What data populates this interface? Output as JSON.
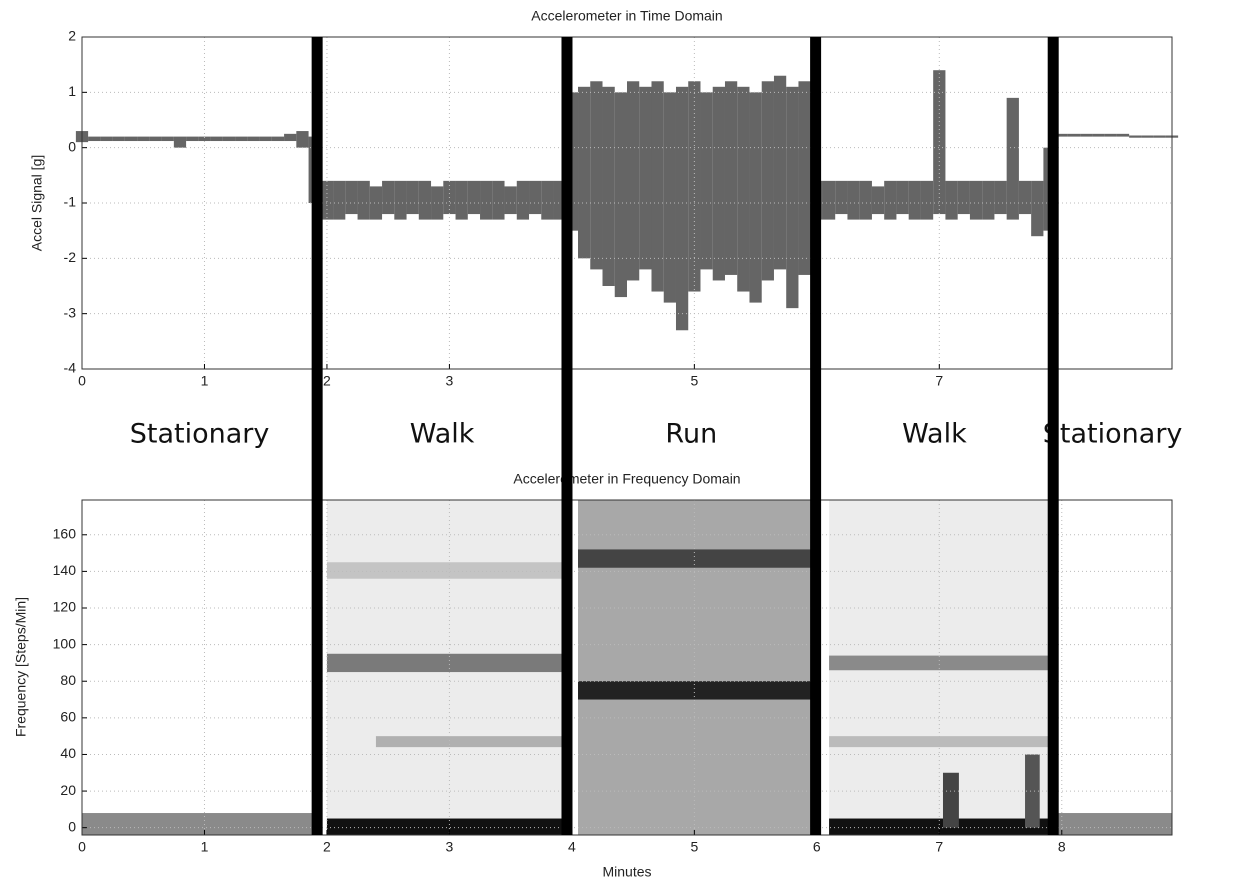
{
  "chart_data": [
    {
      "type": "envelope",
      "title": "Accelerometer in Time Domain",
      "y_label": "Accel Signal [g]",
      "xlim": [
        0,
        8.9
      ],
      "xticks": [
        0,
        1,
        2,
        3,
        5,
        7
      ],
      "ylim": [
        -4,
        2
      ],
      "yticks": [
        -4,
        -3,
        -2,
        -1,
        0,
        1,
        2
      ],
      "grid": true,
      "color": "#4a4a4a",
      "x": [
        0,
        0.1,
        0.2,
        0.3,
        0.4,
        0.5,
        0.6,
        0.7,
        0.8,
        0.9,
        1,
        1.1,
        1.2,
        1.3,
        1.4,
        1.5,
        1.6,
        1.7,
        1.8,
        1.9,
        2,
        2.1,
        2.2,
        2.3,
        2.4,
        2.5,
        2.6,
        2.7,
        2.8,
        2.9,
        3,
        3.1,
        3.2,
        3.3,
        3.4,
        3.5,
        3.6,
        3.7,
        3.8,
        3.9,
        4,
        4.1,
        4.2,
        4.3,
        4.4,
        4.5,
        4.6,
        4.7,
        4.8,
        4.9,
        5,
        5.1,
        5.2,
        5.3,
        5.4,
        5.5,
        5.6,
        5.7,
        5.8,
        5.9,
        6,
        6.1,
        6.2,
        6.3,
        6.4,
        6.5,
        6.6,
        6.7,
        6.8,
        6.9,
        7,
        7.1,
        7.2,
        7.3,
        7.4,
        7.5,
        7.6,
        7.7,
        7.8,
        7.9,
        8,
        8.1,
        8.2,
        8.3,
        8.4,
        8.5,
        8.6,
        8.7,
        8.8,
        8.9
      ],
      "high": [
        0.3,
        0.2,
        0.2,
        0.2,
        0.2,
        0.2,
        0.2,
        0.2,
        0.2,
        0.2,
        0.2,
        0.2,
        0.2,
        0.2,
        0.2,
        0.2,
        0.2,
        0.25,
        0.3,
        0.2,
        -0.6,
        -0.6,
        -0.6,
        -0.6,
        -0.7,
        -0.6,
        -0.6,
        -0.6,
        -0.6,
        -0.7,
        -0.6,
        -0.6,
        -0.6,
        -0.6,
        -0.6,
        -0.7,
        -0.6,
        -0.6,
        -0.6,
        -0.6,
        1.0,
        1.1,
        1.2,
        1.1,
        1.0,
        1.2,
        1.1,
        1.2,
        1.0,
        1.1,
        1.2,
        1.0,
        1.1,
        1.2,
        1.1,
        1.0,
        1.2,
        1.3,
        1.1,
        1.2,
        -0.6,
        -0.6,
        -0.6,
        -0.6,
        -0.6,
        -0.7,
        -0.6,
        -0.6,
        -0.6,
        -0.6,
        1.4,
        -0.6,
        -0.6,
        -0.6,
        -0.6,
        -0.6,
        0.9,
        -0.6,
        -0.6,
        0.0,
        0.25,
        0.25,
        0.25,
        0.25,
        0.25,
        0.25,
        0.22,
        0.22,
        0.22,
        0.22
      ],
      "low": [
        0.1,
        0.12,
        0.12,
        0.12,
        0.12,
        0.12,
        0.12,
        0.12,
        0.0,
        0.12,
        0.12,
        0.12,
        0.12,
        0.12,
        0.12,
        0.12,
        0.12,
        0.12,
        0.0,
        -1.0,
        -1.3,
        -1.3,
        -1.2,
        -1.3,
        -1.3,
        -1.2,
        -1.3,
        -1.2,
        -1.3,
        -1.3,
        -1.2,
        -1.3,
        -1.2,
        -1.3,
        -1.3,
        -1.2,
        -1.3,
        -1.2,
        -1.3,
        -1.3,
        -1.5,
        -2.0,
        -2.2,
        -2.5,
        -2.7,
        -2.4,
        -2.2,
        -2.6,
        -2.8,
        -3.3,
        -2.6,
        -2.2,
        -2.4,
        -2.3,
        -2.6,
        -2.8,
        -2.4,
        -2.2,
        -2.9,
        -2.3,
        -1.3,
        -1.3,
        -1.2,
        -1.3,
        -1.3,
        -1.2,
        -1.3,
        -1.2,
        -1.3,
        -1.3,
        -1.2,
        -1.3,
        -1.2,
        -1.3,
        -1.3,
        -1.2,
        -1.3,
        -1.2,
        -1.6,
        -1.5,
        0.2,
        0.2,
        0.2,
        0.2,
        0.2,
        0.2,
        0.18,
        0.18,
        0.18,
        0.18
      ],
      "segments": [
        {
          "label": "Stationary",
          "start": 0,
          "end": 1.92
        },
        {
          "label": "Walk",
          "start": 1.92,
          "end": 3.96
        },
        {
          "label": "Run",
          "start": 3.96,
          "end": 5.99
        },
        {
          "label": "Walk",
          "start": 5.99,
          "end": 7.93
        },
        {
          "label": "Stationary",
          "start": 7.93,
          "end": 8.9
        }
      ]
    },
    {
      "type": "spectrogram",
      "title": "Accelerometer in Frequency Domain",
      "y_label": "Frequency [Steps/Min]",
      "x_label": "Minutes",
      "xlim": [
        0,
        8.9
      ],
      "xticks": [
        0,
        1,
        2,
        3,
        4,
        5,
        6,
        7,
        8
      ],
      "ylim": [
        -4,
        179
      ],
      "yticks": [
        0,
        20,
        40,
        60,
        80,
        100,
        120,
        140,
        160
      ],
      "grid": true,
      "bands": [
        {
          "start": 2.0,
          "end": 3.95,
          "low": 0,
          "high": 179,
          "color": "#ececec"
        },
        {
          "start": 4.05,
          "end": 5.99,
          "low": -4,
          "high": 179,
          "color": "#a8a8a8"
        },
        {
          "start": 6.1,
          "end": 7.9,
          "low": 0,
          "high": 179,
          "color": "#ececec"
        },
        {
          "start": 0,
          "end": 1.9,
          "low": -4,
          "high": 8,
          "color": "#8a8a8a"
        },
        {
          "start": 2.0,
          "end": 3.95,
          "low": -4,
          "high": 5,
          "color": "#111111"
        },
        {
          "start": 2.0,
          "end": 3.95,
          "low": 85,
          "high": 95,
          "color": "#7a7a7a"
        },
        {
          "start": 2.4,
          "end": 3.95,
          "low": 44,
          "high": 50,
          "color": "#b0b0b0"
        },
        {
          "start": 2.0,
          "end": 3.95,
          "low": 136,
          "high": 145,
          "color": "#c4c4c4"
        },
        {
          "start": 4.05,
          "end": 5.99,
          "low": 70,
          "high": 80,
          "color": "#222222"
        },
        {
          "start": 4.05,
          "end": 5.99,
          "low": 142,
          "high": 152,
          "color": "#444444"
        },
        {
          "start": 6.1,
          "end": 7.9,
          "low": -4,
          "high": 5,
          "color": "#111111"
        },
        {
          "start": 6.1,
          "end": 7.9,
          "low": 86,
          "high": 94,
          "color": "#8a8a8a"
        },
        {
          "start": 6.1,
          "end": 7.9,
          "low": 44,
          "high": 50,
          "color": "#bbbbbb"
        },
        {
          "start": 7.03,
          "end": 7.16,
          "low": 0,
          "high": 30,
          "color": "#444444"
        },
        {
          "start": 7.7,
          "end": 7.82,
          "low": 0,
          "high": 40,
          "color": "#555555"
        },
        {
          "start": 7.95,
          "end": 8.9,
          "low": -4,
          "high": 8,
          "color": "#8a8a8a"
        }
      ]
    }
  ]
}
